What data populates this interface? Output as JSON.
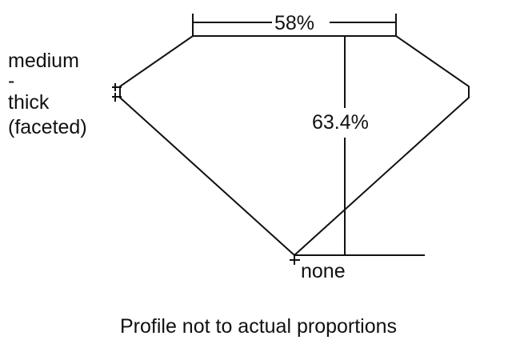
{
  "diagram": {
    "table_label": "58%",
    "depth_label": "63.4%",
    "girdle_label": [
      "medium",
      "-",
      "thick",
      "(faceted)"
    ],
    "culet_label": "none",
    "caption": "Profile not to actual proportions",
    "line_color": "#111111"
  }
}
